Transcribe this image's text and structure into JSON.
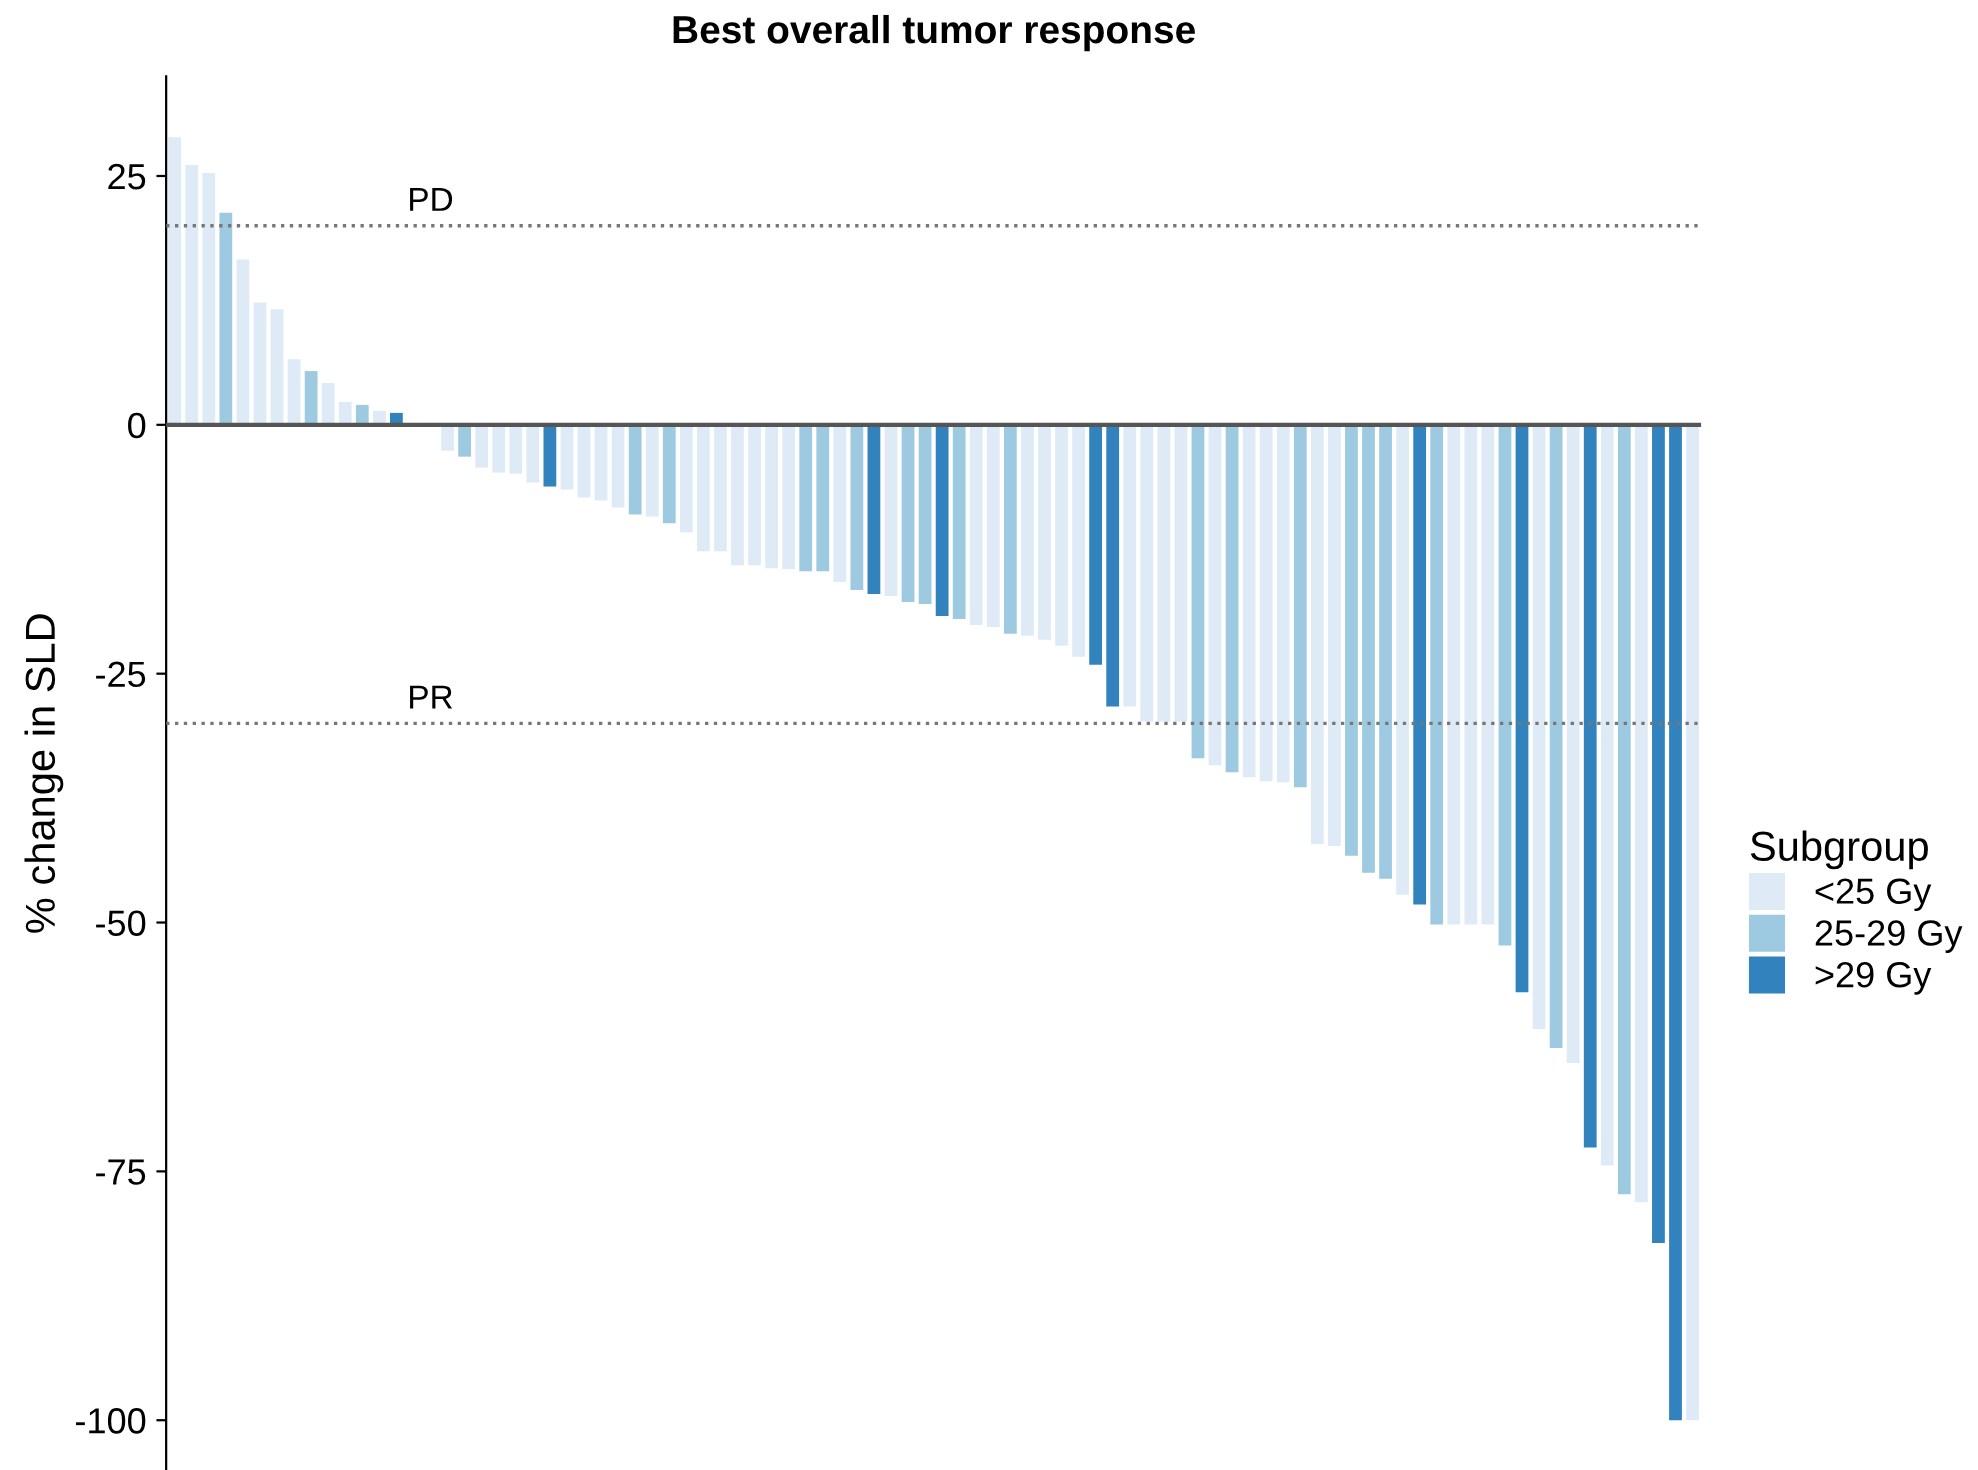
{
  "chart_data": {
    "type": "bar",
    "title": "Best overall tumor response",
    "ylabel": "% change in SLD",
    "legend_title": "Subgroup",
    "categories": [
      null,
      null,
      null,
      null,
      null,
      null,
      null,
      null,
      null,
      null,
      null,
      null,
      null,
      null,
      null,
      null,
      null,
      null,
      null,
      null,
      null,
      null,
      null,
      null,
      null,
      null,
      null,
      null,
      null,
      null,
      null,
      null,
      null,
      null,
      null,
      null,
      null,
      null,
      null,
      null,
      null,
      null,
      null,
      null,
      null,
      null,
      null,
      null,
      null,
      null,
      null,
      null,
      null,
      null,
      null,
      null,
      null,
      null,
      null,
      null,
      null,
      null,
      null,
      null,
      null,
      null,
      null,
      null,
      null,
      null,
      null,
      null,
      null,
      null,
      null,
      null,
      null,
      null,
      null,
      null,
      null,
      null,
      null,
      null,
      null,
      null,
      null,
      null,
      null,
      null
    ],
    "series": [
      {
        "name": "<25 Gy",
        "color": "#deebf7",
        "values": [
          28.9,
          26.1,
          25.3,
          null,
          16.6,
          12.3,
          11.6,
          6.6,
          null,
          4.2,
          2.3,
          null,
          1.4,
          null,
          null,
          null,
          -2.6,
          null,
          -4.3,
          -4.8,
          -4.9,
          -5.8,
          null,
          -6.5,
          -7.3,
          -7.6,
          -8.3,
          null,
          -9.2,
          null,
          -10.8,
          -12.7,
          -12.7,
          -14.1,
          -14.1,
          -14.4,
          -14.5,
          null,
          null,
          -15.8,
          null,
          null,
          -17.2,
          null,
          null,
          null,
          null,
          -20.1,
          -20.3,
          null,
          -21.2,
          -21.6,
          -22.2,
          -23.3,
          null,
          null,
          -28.3,
          -29.8,
          -29.8,
          -29.8,
          null,
          -34.2,
          null,
          -35.4,
          -35.8,
          -35.9,
          null,
          -42.1,
          -42.3,
          null,
          null,
          null,
          -47.2,
          null,
          null,
          -50.2,
          -50.2,
          -50.2,
          null,
          null,
          -60.7,
          null,
          -64.1,
          null,
          -74.4,
          null,
          -78.1,
          null,
          null,
          -100
        ]
      },
      {
        "name": "25-29 Gy",
        "color": "#9ecae1",
        "values": [
          null,
          null,
          null,
          21.3,
          null,
          null,
          null,
          null,
          5.4,
          null,
          null,
          2.0,
          null,
          null,
          null,
          null,
          null,
          -3.2,
          null,
          null,
          null,
          null,
          null,
          null,
          null,
          null,
          null,
          -9.0,
          null,
          -9.9,
          null,
          null,
          null,
          null,
          null,
          null,
          null,
          -14.7,
          -14.7,
          null,
          -16.6,
          null,
          null,
          -17.8,
          -18.0,
          null,
          -19.5,
          null,
          null,
          -21.0,
          null,
          null,
          null,
          null,
          null,
          null,
          null,
          null,
          null,
          null,
          -33.5,
          null,
          -34.9,
          null,
          null,
          null,
          -36.4,
          null,
          null,
          -43.3,
          -45.0,
          -45.6,
          null,
          null,
          -50.2,
          null,
          null,
          null,
          -52.3,
          null,
          null,
          -62.6,
          null,
          null,
          null,
          -77.3,
          null,
          null,
          null,
          null
        ]
      },
      {
        "name": ">29 Gy",
        "color": "#3182bd",
        "values": [
          null,
          null,
          null,
          null,
          null,
          null,
          null,
          null,
          null,
          null,
          null,
          null,
          null,
          1.2,
          null,
          null,
          null,
          null,
          null,
          null,
          null,
          null,
          -6.2,
          null,
          null,
          null,
          null,
          null,
          null,
          null,
          null,
          null,
          null,
          null,
          null,
          null,
          null,
          null,
          null,
          null,
          null,
          -17.0,
          null,
          null,
          null,
          -19.2,
          null,
          null,
          null,
          null,
          null,
          null,
          null,
          null,
          -24.1,
          -28.3,
          null,
          null,
          null,
          null,
          null,
          null,
          null,
          null,
          null,
          null,
          null,
          null,
          null,
          null,
          null,
          null,
          null,
          -48.2,
          null,
          null,
          null,
          null,
          null,
          -57.0,
          null,
          null,
          null,
          -72.6,
          null,
          null,
          null,
          -82.2,
          -100,
          null
        ]
      }
    ],
    "ylim": [
      -105,
      35
    ],
    "yticks": [
      25,
      0,
      -25,
      -50,
      -75,
      -100
    ],
    "ref_lines": [
      {
        "axis": "y",
        "value": 0,
        "label": null,
        "color": "#555555",
        "line_style": "solid"
      },
      {
        "axis": "y",
        "value": 20,
        "label": "PD",
        "color": "#777777",
        "line_style": "dotted"
      },
      {
        "axis": "y",
        "value": -30,
        "label": "PR",
        "color": "#777777",
        "line_style": "dotted"
      }
    ],
    "legend": "right",
    "grid": false
  }
}
